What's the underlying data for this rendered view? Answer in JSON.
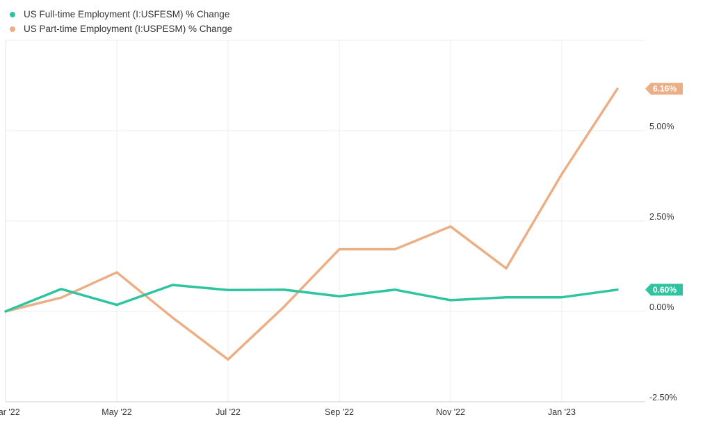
{
  "legend": [
    {
      "label": "US Full-time Employment (I:USFESM) % Change",
      "color": "#2ec4a0"
    },
    {
      "label": "US Part-time Employment (I:USPESM) % Change",
      "color": "#ecaf85"
    }
  ],
  "chart_data": {
    "type": "line",
    "x": [
      "2022-03",
      "2022-04",
      "2022-05",
      "2022-06",
      "2022-07",
      "2022-08",
      "2022-09",
      "2022-10",
      "2022-11",
      "2022-12",
      "2023-01",
      "2023-02"
    ],
    "x_tick_labels": [
      {
        "x": "2022-03",
        "label": "Mar '22"
      },
      {
        "x": "2022-05",
        "label": "May '22"
      },
      {
        "x": "2022-07",
        "label": "Jul '22"
      },
      {
        "x": "2022-09",
        "label": "Sep '22"
      },
      {
        "x": "2022-11",
        "label": "Nov '22"
      },
      {
        "x": "2023-01",
        "label": "Jan '23"
      }
    ],
    "y_ticks": [
      {
        "value": 5.0,
        "label": "5.00%"
      },
      {
        "value": 2.5,
        "label": "2.50%"
      },
      {
        "value": 0.0,
        "label": "0.00%"
      },
      {
        "value": -2.5,
        "label": "-2.50%"
      }
    ],
    "ylim": [
      -2.5,
      7.5
    ],
    "grid": true,
    "legend_position": "top-left",
    "series": [
      {
        "name": "US Full-time Employment (I:USFESM) % Change",
        "color": "#2ec4a0",
        "values": [
          0.0,
          0.62,
          0.18,
          0.73,
          0.59,
          0.6,
          0.42,
          0.6,
          0.31,
          0.39,
          0.39,
          0.6
        ],
        "end_label": "0.60%"
      },
      {
        "name": "US Part-time Employment (I:USPESM) % Change",
        "color": "#ecaf85",
        "values": [
          0.0,
          0.38,
          1.08,
          -0.17,
          -1.33,
          0.12,
          1.72,
          1.72,
          2.35,
          1.19,
          3.8,
          6.16
        ],
        "end_label": "6.16%"
      }
    ]
  }
}
